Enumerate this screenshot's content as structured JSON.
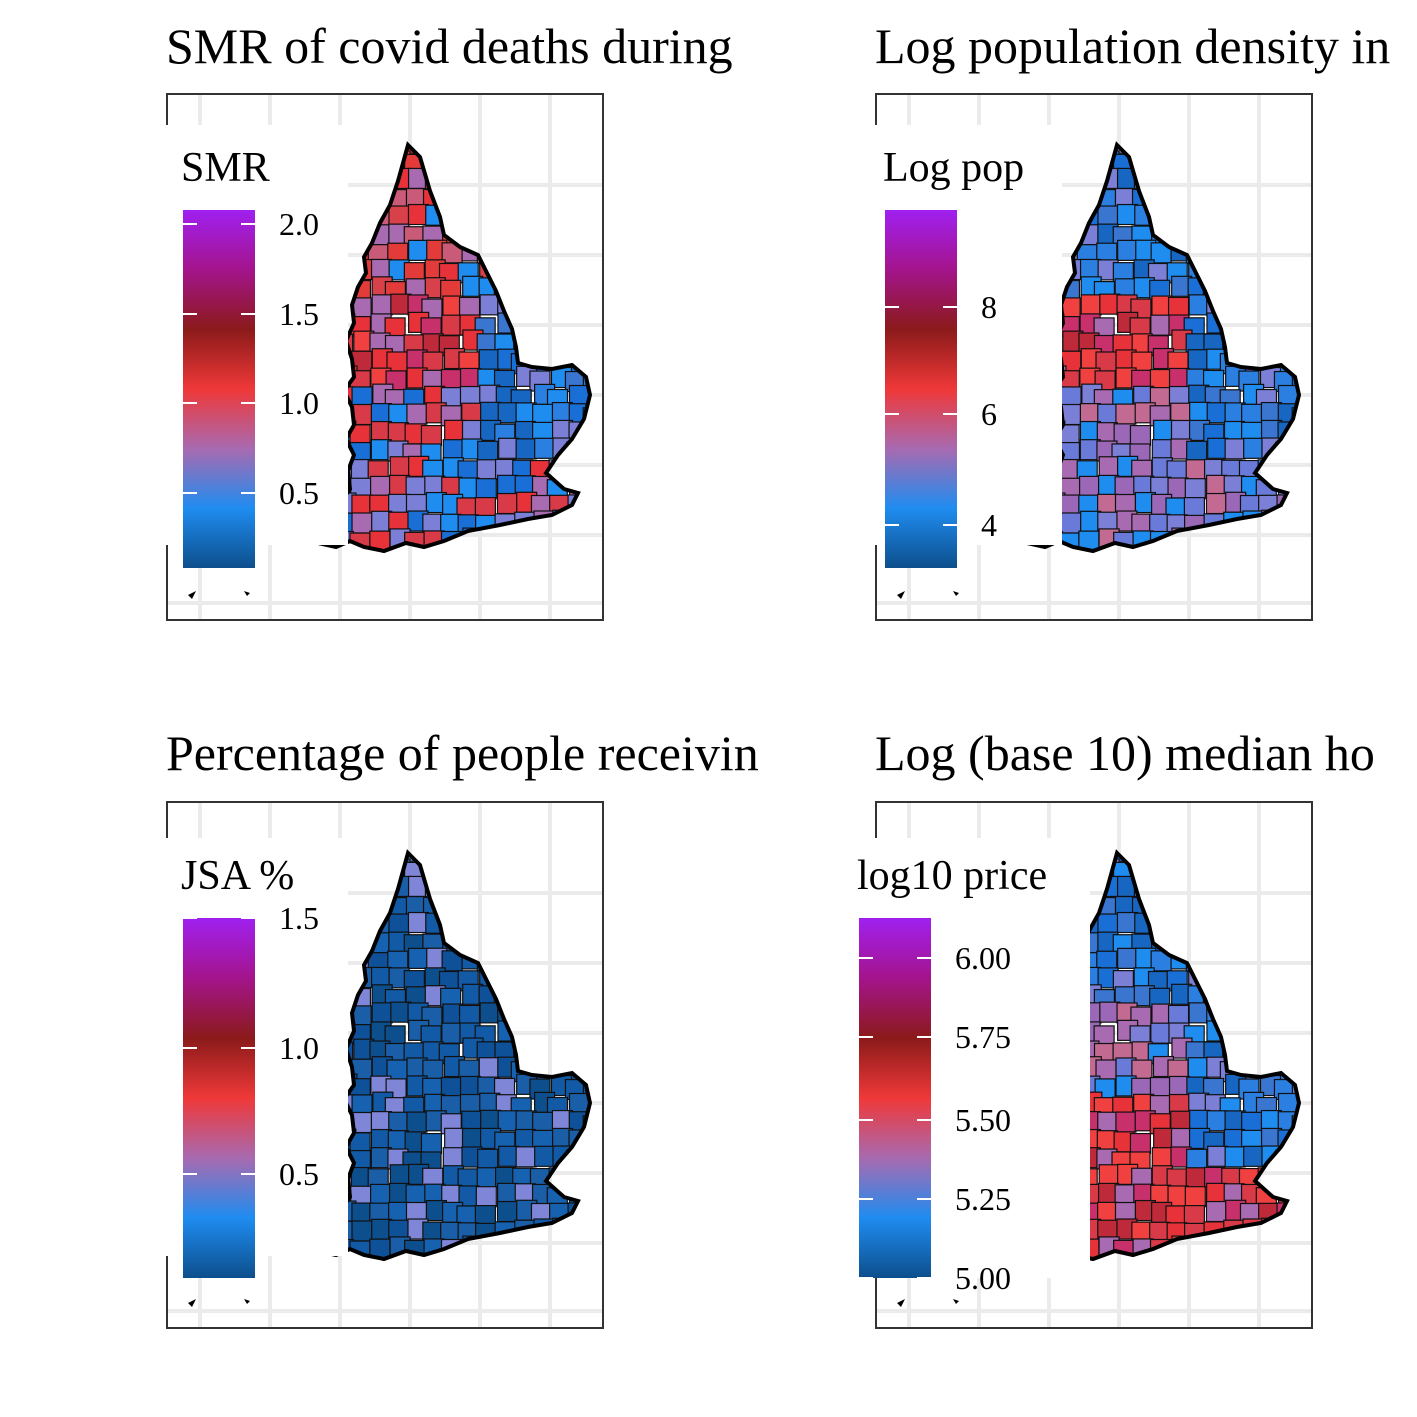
{
  "gradient_colors": [
    "#0d4f8c",
    "#1f8cf0",
    "#a86ab0",
    "#ef3838",
    "#8b1a1a",
    "#a4148c",
    "#a020f0"
  ],
  "panels": [
    {
      "title": "SMR of covid deaths during",
      "legend": {
        "title": "SMR",
        "ticks": [
          {
            "label": "2.0",
            "frac": 0.96
          },
          {
            "label": "1.5",
            "frac": 0.71
          },
          {
            "label": "1.0",
            "frac": 0.46
          },
          {
            "label": "0.5",
            "frac": 0.21
          }
        ]
      },
      "map": {
        "north": "redish",
        "midlands": "red",
        "east": "blue",
        "south": "mixed"
      }
    },
    {
      "title": "Log population density in",
      "legend": {
        "title": "Log pop",
        "ticks": [
          {
            "label": "8",
            "frac": 0.73
          },
          {
            "label": "6",
            "frac": 0.43
          },
          {
            "label": "4",
            "frac": 0.12
          }
        ]
      },
      "map": {
        "north": "blue",
        "midlands": "red",
        "east": "blue",
        "south": "purple"
      }
    },
    {
      "title": "Percentage of people receivin",
      "legend": {
        "title": "JSA %",
        "ticks": [
          {
            "label": "1.5",
            "frac": 1.0
          },
          {
            "label": "1.0",
            "frac": 0.64
          },
          {
            "label": "0.5",
            "frac": 0.29
          }
        ]
      },
      "map": {
        "north": "dark-blue",
        "midlands": "dark-blue",
        "east": "dark-blue",
        "south": "dark-blue"
      }
    },
    {
      "title": "Log (base 10) median ho",
      "legend": {
        "title": "log10 price",
        "ticks": [
          {
            "label": "6.00",
            "frac": 0.89
          },
          {
            "label": "5.75",
            "frac": 0.67
          },
          {
            "label": "5.50",
            "frac": 0.44
          },
          {
            "label": "5.25",
            "frac": 0.22
          },
          {
            "label": "5.00",
            "frac": 0.0
          }
        ]
      },
      "map": {
        "north": "blue",
        "midlands": "purple",
        "east": "blue",
        "south": "red"
      }
    }
  ]
}
